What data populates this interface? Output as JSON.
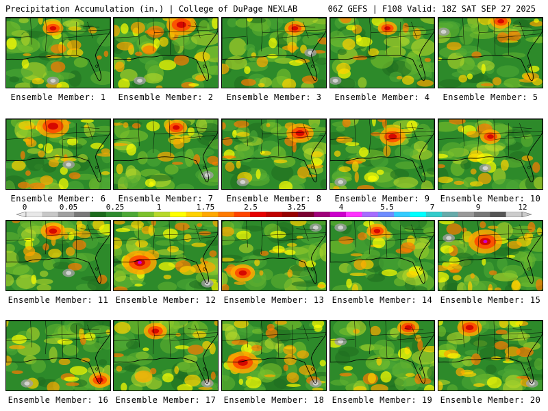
{
  "header": {
    "title_left": "Precipitation Accumulation (in.) | College of DuPage NEXLAB",
    "title_right": "06Z GEFS | F108 Valid: 18Z SAT SEP 27 2025"
  },
  "panels": [
    {
      "label": "Ensemble Member: 1",
      "intensity": 0.35,
      "hot": [
        0.45,
        0.15
      ],
      "grey": [
        0.45,
        0.9
      ]
    },
    {
      "label": "Ensemble Member: 2",
      "intensity": 0.7,
      "hot": [
        0.65,
        0.1
      ],
      "grey": [
        0.25,
        0.9
      ]
    },
    {
      "label": "Ensemble Member: 3",
      "intensity": 0.35,
      "hot": [
        0.7,
        0.15
      ],
      "grey": [
        0.85,
        0.5
      ]
    },
    {
      "label": "Ensemble Member: 4",
      "intensity": 0.3,
      "hot": [
        0.55,
        0.15
      ],
      "grey": [
        0.05,
        0.9
      ]
    },
    {
      "label": "Ensemble Member: 5",
      "intensity": 0.35,
      "hot": [
        0.6,
        0.05
      ],
      "grey": [
        0.05,
        0.2
      ]
    },
    {
      "label": "Ensemble Member: 6",
      "intensity": 0.8,
      "hot": [
        0.45,
        0.1
      ],
      "grey": [
        0.6,
        0.65
      ]
    },
    {
      "label": "Ensemble Member: 7",
      "intensity": 0.4,
      "hot": [
        0.6,
        0.12
      ],
      "grey": [
        0.9,
        0.8
      ]
    },
    {
      "label": "Ensemble Member: 8",
      "intensity": 0.6,
      "hot": [
        0.75,
        0.2
      ],
      "grey": [
        0.2,
        0.9
      ]
    },
    {
      "label": "Ensemble Member: 9",
      "intensity": 0.55,
      "hot": [
        0.6,
        0.25
      ],
      "grey": [
        0.1,
        0.9
      ]
    },
    {
      "label": "Ensemble Member: 10",
      "intensity": 0.35,
      "hot": [
        0.5,
        0.25
      ],
      "grey": [
        0.45,
        0.7
      ]
    },
    {
      "label": "Ensemble Member: 11",
      "intensity": 0.5,
      "hot": [
        0.45,
        0.15
      ],
      "grey": [
        0.6,
        0.75
      ]
    },
    {
      "label": "Ensemble Member: 12",
      "intensity": 0.85,
      "hot": [
        0.25,
        0.6
      ],
      "grey": [
        0.9,
        0.9
      ]
    },
    {
      "label": "Ensemble Member: 13",
      "intensity": 0.5,
      "hot": [
        0.2,
        0.75
      ],
      "grey": [
        0.9,
        0.1
      ]
    },
    {
      "label": "Ensemble Member: 14",
      "intensity": 0.35,
      "hot": [
        0.45,
        0.15
      ],
      "grey": [
        0.1,
        0.1
      ]
    },
    {
      "label": "Ensemble Member: 15",
      "intensity": 0.85,
      "hot": [
        0.45,
        0.3
      ],
      "grey": [
        0.1,
        0.25
      ]
    },
    {
      "label": "Ensemble Member: 16",
      "intensity": 0.4,
      "hot": [
        0.9,
        0.85
      ],
      "grey": [
        0.2,
        0.9
      ]
    },
    {
      "label": "Ensemble Member: 17",
      "intensity": 0.45,
      "hot": [
        0.4,
        0.15
      ],
      "grey": [
        0.9,
        0.9
      ]
    },
    {
      "label": "Ensemble Member: 18",
      "intensity": 0.75,
      "hot": [
        0.2,
        0.6
      ],
      "grey": [
        0.9,
        0.9
      ]
    },
    {
      "label": "Ensemble Member: 19",
      "intensity": 0.4,
      "hot": [
        0.75,
        0.1
      ],
      "grey": [
        0.1,
        0.3
      ]
    },
    {
      "label": "Ensemble Member: 20",
      "intensity": 0.5,
      "hot": [
        0.3,
        0.1
      ],
      "grey": [
        0.9,
        0.9
      ]
    }
  ],
  "legend": {
    "labels": [
      "0",
      "0.05",
      "0.25",
      "1",
      "1.75",
      "2.5",
      "3.25",
      "4",
      "5.5",
      "7",
      "9",
      "12"
    ],
    "colors": [
      "#e8e8e8",
      "#c8c8c8",
      "#a0a0a0",
      "#787878",
      "#1c6a1c",
      "#2e8b2e",
      "#4ca835",
      "#7cc22c",
      "#b8d92a",
      "#ffff00",
      "#ffd200",
      "#ffa800",
      "#ff7a00",
      "#ff4400",
      "#e60000",
      "#c00000",
      "#960000",
      "#7a0030",
      "#a0007a",
      "#cc00cc",
      "#ff33ff",
      "#a66cff",
      "#6e8cff",
      "#33ccff",
      "#00ffff",
      "#33cccc",
      "#66aaaa",
      "#999999",
      "#777777",
      "#555555",
      "#cccccc"
    ]
  }
}
